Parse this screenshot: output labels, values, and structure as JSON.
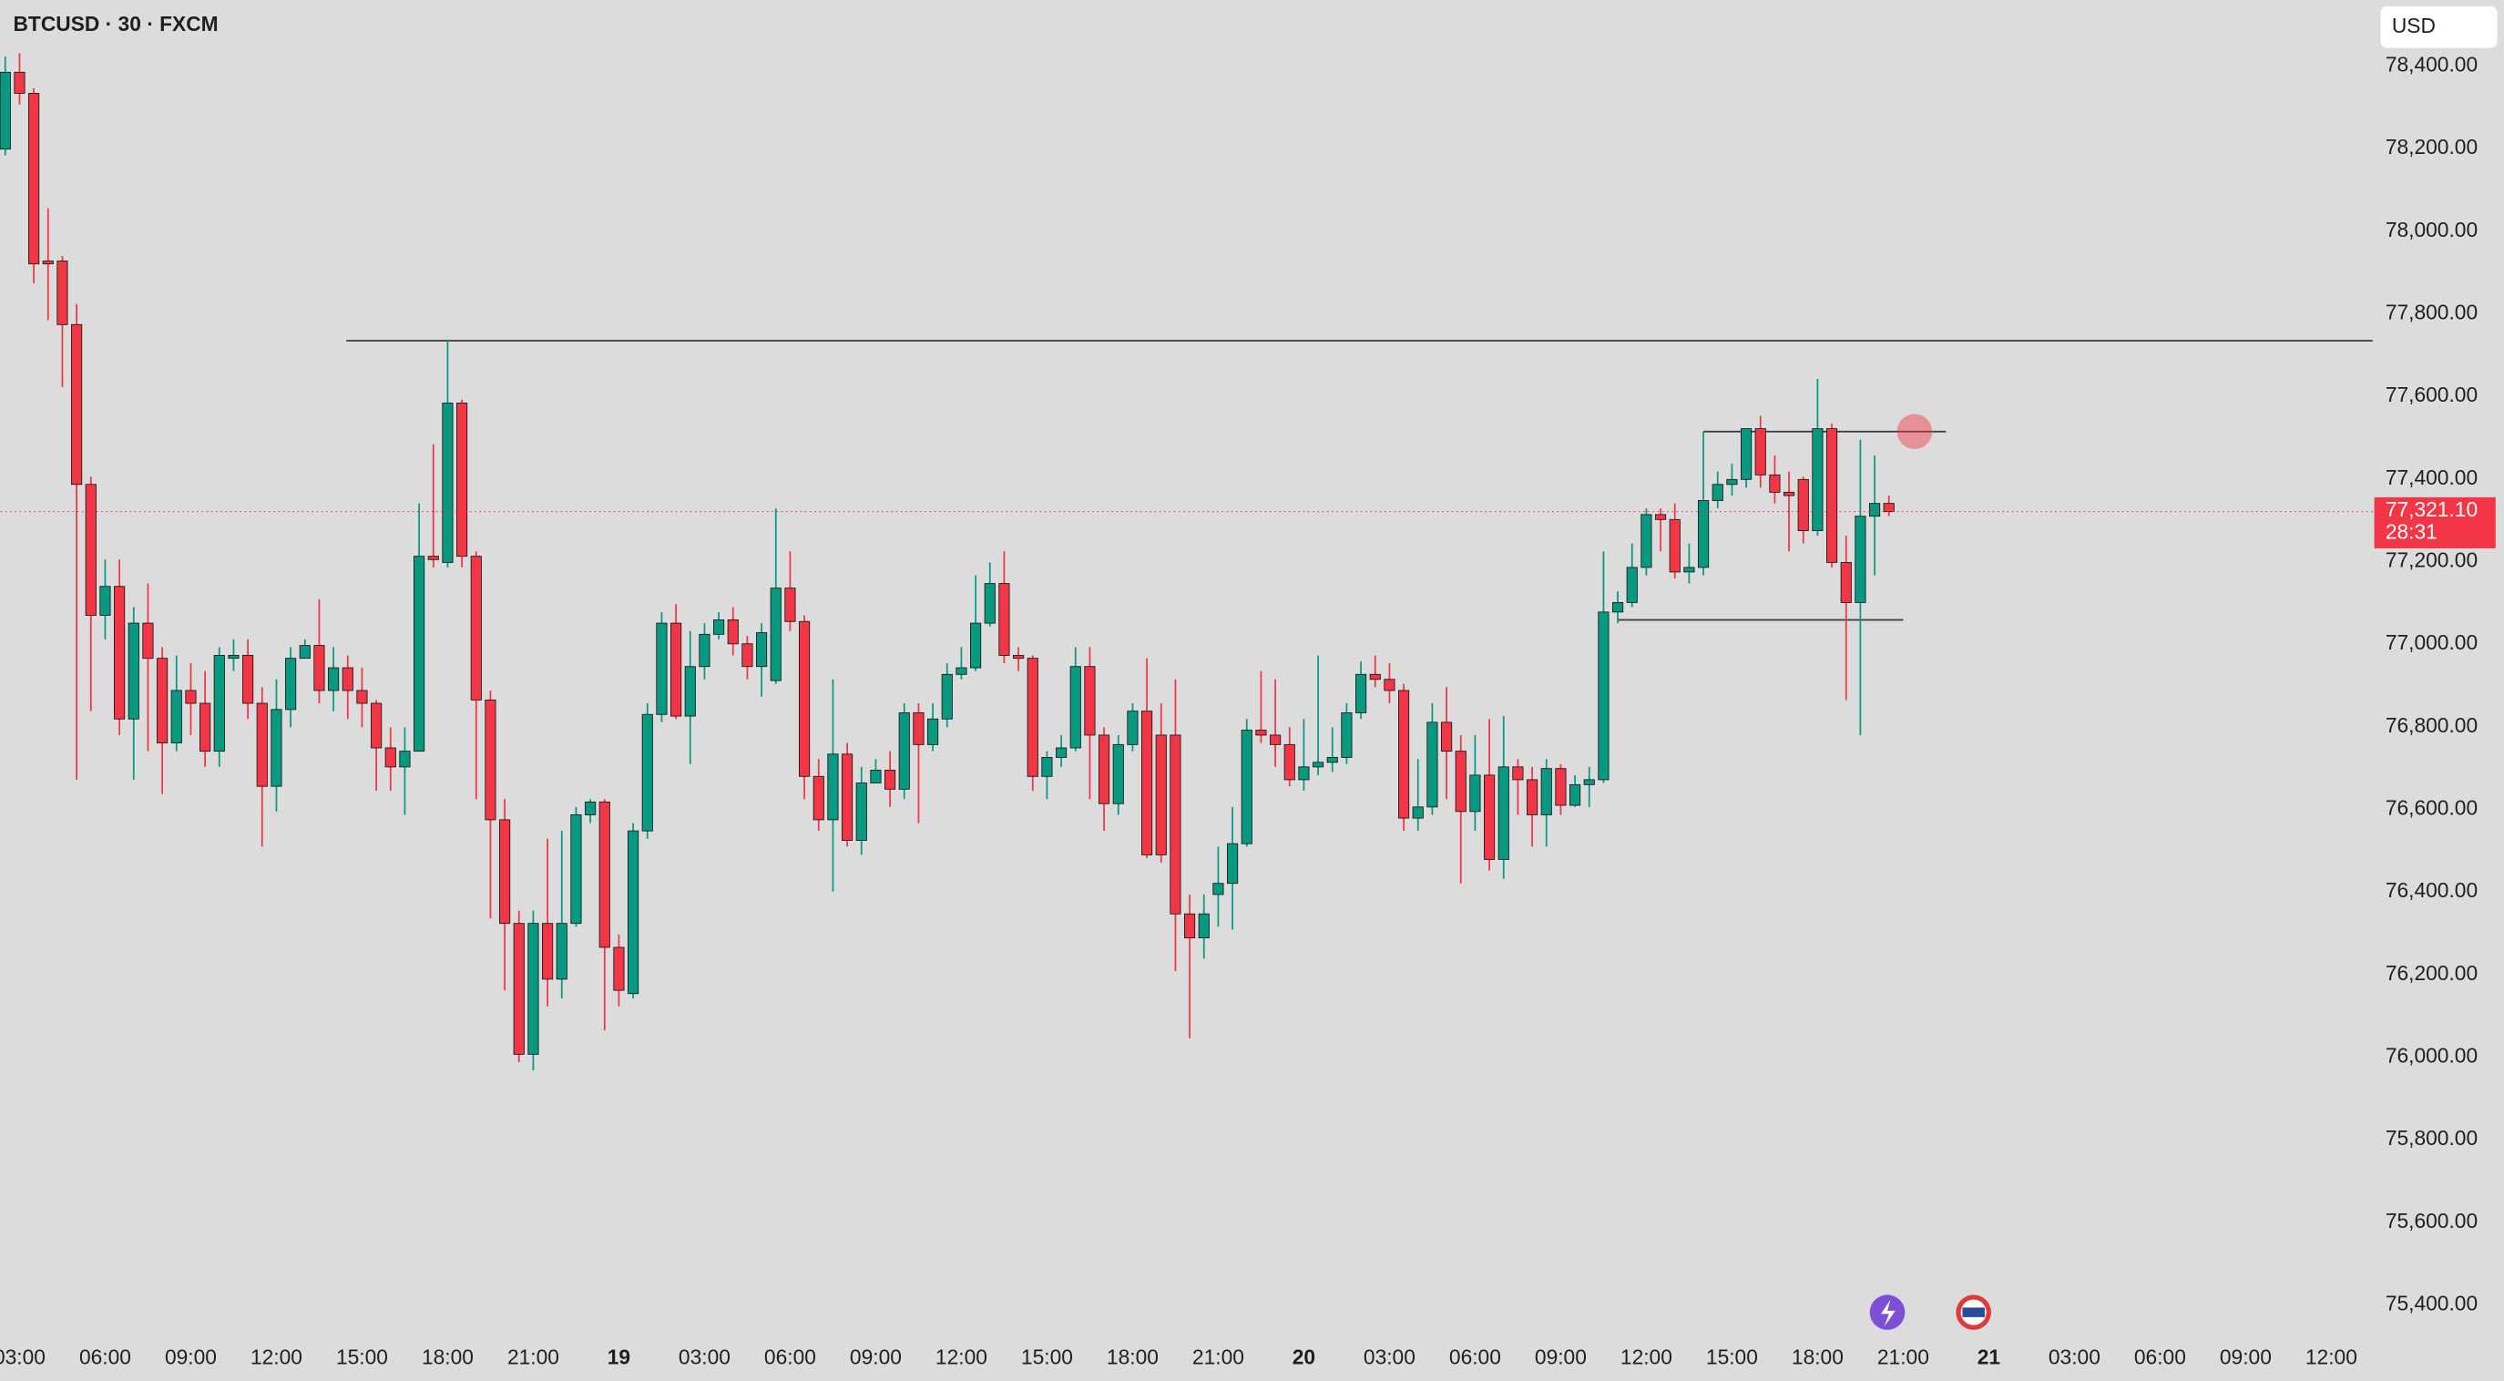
{
  "chart_data": {
    "type": "candlestick",
    "title": "BTCUSD · 30 · FXCM",
    "currency": "USD",
    "up_color": "#089981",
    "down_color": "#f23645",
    "open": [
      78199,
      78385,
      78334,
      77928,
      77928,
      77774,
      77387,
      77070,
      77140,
      76819,
      77051,
      76966,
      76761,
      76888,
      76857,
      76741,
      76966,
      76973,
      76857,
      76656,
      76842,
      76966,
      76997,
      76888,
      76943,
      76888,
      76857,
      76749,
      76703,
      76741,
      77213,
      77198,
      77584,
      77213,
      76865,
      76575,
      76324,
      76007,
      76324,
      76189,
      76324,
      76587,
      76618,
      76266,
      76154,
      76548,
      76830,
      77051,
      76826,
      76946,
      77024,
      77059,
      77001,
      76946,
      76912,
      77136,
      77055,
      76680,
      76575,
      76734,
      76525,
      76664,
      76695,
      76649,
      76834,
      76757,
      76819,
      76927,
      76943,
      77051,
      77147,
      76973,
      76966,
      76680,
      76726,
      76749,
      76946,
      76780,
      76614,
      76757,
      76838,
      76780,
      76780,
      76347,
      76289,
      76394,
      76421,
      76517,
      76792,
      76780,
      76757,
      76672,
      76703,
      76714,
      76726,
      76834,
      76927,
      76915,
      76888,
      76579,
      76606,
      76811,
      76741,
      76595,
      76683,
      76479,
      76703,
      76672,
      76587,
      76699,
      76610,
      76660,
      76672,
      77078,
      77101,
      77186,
      77314,
      77302,
      77175,
      77186,
      77348,
      77387,
      77399,
      77522,
      77410,
      77368,
      77399,
      77275,
      77522,
      77198,
      77101,
      77310,
      77341
    ],
    "high": [
      78423,
      78431,
      78346,
      78056,
      77940,
      77824,
      77406,
      77205,
      77205,
      77090,
      77147,
      76993,
      76973,
      76954,
      76935,
      76993,
      77012,
      77012,
      76896,
      76915,
      76993,
      77012,
      77109,
      76993,
      76973,
      76943,
      76865,
      76799,
      76799,
      77341,
      77484,
      77735,
      77592,
      77225,
      76888,
      76625,
      76355,
      76355,
      76529,
      76548,
      76606,
      76625,
      76625,
      76297,
      76567,
      76857,
      77078,
      77097,
      77032,
      77051,
      77078,
      77090,
      77020,
      77051,
      77329,
      77225,
      77070,
      76722,
      76915,
      76761,
      76703,
      76722,
      76741,
      76857,
      76857,
      76857,
      76954,
      76993,
      77167,
      77198,
      77225,
      76993,
      76973,
      76741,
      76780,
      76993,
      76993,
      76799,
      76780,
      76857,
      76966,
      76857,
      76915,
      76394,
      76394,
      76510,
      76606,
      76819,
      76935,
      76915,
      76799,
      76819,
      76973,
      76799,
      76857,
      76958,
      76973,
      76954,
      76904,
      76722,
      76857,
      76896,
      76780,
      76780,
      76819,
      76826,
      76722,
      76703,
      76722,
      76710,
      76683,
      76703,
      77225,
      77128,
      77244,
      77329,
      77329,
      77341,
      77244,
      77515,
      77418,
      77437,
      77522,
      77553,
      77457,
      77418,
      77406,
      77642,
      77534,
      77263,
      77495,
      77457,
      77360
    ],
    "low": [
      78184,
      78307,
      77874,
      77785,
      77623,
      76672,
      76838,
      77012,
      76780,
      76672,
      76741,
      76637,
      76741,
      76780,
      76703,
      76703,
      76935,
      76819,
      76510,
      76595,
      76799,
      76966,
      76857,
      76838,
      76819,
      76799,
      76645,
      76645,
      76587,
      76741,
      77186,
      77186,
      77186,
      76625,
      76336,
      76162,
      75988,
      75968,
      76123,
      76142,
      76316,
      76567,
      76065,
      76123,
      76142,
      76529,
      76811,
      76819,
      76710,
      76915,
      77012,
      76973,
      76915,
      76873,
      76904,
      77032,
      76625,
      76548,
      76401,
      76510,
      76490,
      76664,
      76606,
      76625,
      76567,
      76741,
      76799,
      76915,
      76935,
      77043,
      76954,
      76935,
      76645,
      76625,
      76703,
      76741,
      76625,
      76548,
      76587,
      76741,
      76482,
      76471,
      76208,
      76046,
      76239,
      76316,
      76309,
      76510,
      76761,
      76703,
      76656,
      76645,
      76683,
      76691,
      76710,
      76819,
      76896,
      76857,
      76548,
      76548,
      76587,
      76625,
      76421,
      76548,
      76452,
      76432,
      76587,
      76510,
      76510,
      76587,
      76606,
      76606,
      76664,
      77051,
      77090,
      77167,
      77225,
      77159,
      77147,
      77167,
      77329,
      77360,
      77379,
      77379,
      77341,
      77225,
      77244,
      77263,
      77186,
      76865,
      76780,
      77167,
      77310
    ],
    "close": [
      78385,
      78334,
      77921,
      77921,
      77774,
      77387,
      77070,
      77140,
      76819,
      77051,
      76966,
      76761,
      76888,
      76857,
      76741,
      76973,
      76973,
      76857,
      76656,
      76842,
      76966,
      76997,
      76888,
      76943,
      76888,
      76857,
      76749,
      76703,
      76741,
      77213,
      77205,
      77584,
      77213,
      76865,
      76575,
      76324,
      76007,
      76324,
      76189,
      76324,
      76587,
      76618,
      76266,
      76162,
      76548,
      76830,
      77051,
      76826,
      76946,
      77024,
      77059,
      77001,
      76946,
      77028,
      77136,
      77055,
      76680,
      76575,
      76734,
      76525,
      76664,
      76695,
      76649,
      76834,
      76757,
      76819,
      76927,
      76943,
      77051,
      77147,
      76973,
      76966,
      76680,
      76726,
      76749,
      76946,
      76780,
      76614,
      76757,
      76838,
      76490,
      76490,
      76347,
      76289,
      76347,
      76421,
      76517,
      76792,
      76780,
      76757,
      76672,
      76703,
      76714,
      76726,
      76834,
      76927,
      76915,
      76888,
      76579,
      76606,
      76811,
      76741,
      76595,
      76683,
      76479,
      76703,
      76672,
      76587,
      76699,
      76610,
      76660,
      76672,
      77078,
      77101,
      77186,
      77314,
      77302,
      77175,
      77186,
      77348,
      77387,
      77399,
      77522,
      77410,
      77368,
      77360,
      77275,
      77522,
      77198,
      77101,
      77310,
      77341,
      77321.1
    ],
    "xlim": [
      -0.34,
      165.9
    ],
    "xticks": [
      {
        "value": 1,
        "label": "03:00"
      },
      {
        "value": 7,
        "label": "06:00"
      },
      {
        "value": 13,
        "label": "09:00"
      },
      {
        "value": 19,
        "label": "12:00"
      },
      {
        "value": 25,
        "label": "15:00"
      },
      {
        "value": 31,
        "label": "18:00"
      },
      {
        "value": 37,
        "label": "21:00"
      },
      {
        "value": 43,
        "label": "19"
      },
      {
        "value": 49,
        "label": "03:00"
      },
      {
        "value": 55,
        "label": "06:00"
      },
      {
        "value": 61,
        "label": "09:00"
      },
      {
        "value": 67,
        "label": "12:00"
      },
      {
        "value": 73,
        "label": "15:00"
      },
      {
        "value": 79,
        "label": "18:00"
      },
      {
        "value": 85,
        "label": "21:00"
      },
      {
        "value": 91,
        "label": "20"
      },
      {
        "value": 97,
        "label": "03:00"
      },
      {
        "value": 103,
        "label": "06:00"
      },
      {
        "value": 109,
        "label": "09:00"
      },
      {
        "value": 115,
        "label": "12:00"
      },
      {
        "value": 121,
        "label": "15:00"
      },
      {
        "value": 127,
        "label": "18:00"
      },
      {
        "value": 133,
        "label": "21:00"
      },
      {
        "value": 139,
        "label": "21"
      },
      {
        "value": 145,
        "label": "03:00"
      },
      {
        "value": 151,
        "label": "06:00"
      },
      {
        "value": 157,
        "label": "09:00"
      },
      {
        "value": 163,
        "label": "12:00"
      }
    ],
    "ylim": [
      75330,
      78560
    ],
    "yticks": [
      {
        "value": 78400,
        "label": "78,400.00"
      },
      {
        "value": 78200,
        "label": "78,200.00"
      },
      {
        "value": 78000,
        "label": "78,000.00"
      },
      {
        "value": 77800,
        "label": "77,800.00"
      },
      {
        "value": 77600,
        "label": "77,600.00"
      },
      {
        "value": 77400,
        "label": "77,400.00"
      },
      {
        "value": 77200,
        "label": "77,200.00"
      },
      {
        "value": 77000,
        "label": "77,000.00"
      },
      {
        "value": 76800,
        "label": "76,800.00"
      },
      {
        "value": 76600,
        "label": "76,600.00"
      },
      {
        "value": 76400,
        "label": "76,400.00"
      },
      {
        "value": 76200,
        "label": "76,200.00"
      },
      {
        "value": 76000,
        "label": "76,000.00"
      },
      {
        "value": 75800,
        "label": "75,800.00"
      },
      {
        "value": 75600,
        "label": "75,600.00"
      },
      {
        "value": 75400,
        "label": "75,400.00"
      }
    ],
    "last_price": {
      "value": 77321.1,
      "label": "77,321.10"
    },
    "countdown": "28:31",
    "levels": [
      77735,
      77515,
      77059
    ]
  }
}
